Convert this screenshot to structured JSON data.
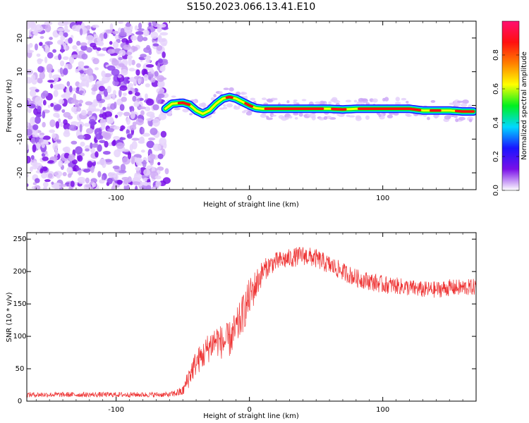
{
  "title": "S150.2023.066.13.41.E10",
  "chart_data": [
    {
      "type": "heatmap",
      "xlabel": "Height of straight line (km)",
      "ylabel": "Frequency (Hz)",
      "xlim": [
        -167,
        170
      ],
      "ylim": [
        -25,
        25
      ],
      "xticks": [
        -100,
        0,
        100
      ],
      "yticks": [
        -20,
        -10,
        0,
        10,
        20
      ],
      "noise_region_x": [
        -167,
        -63
      ],
      "ridge": {
        "x": [
          -63,
          -58,
          -50,
          -45,
          -40,
          -35,
          -30,
          -25,
          -20,
          -15,
          -10,
          -5,
          0,
          5,
          10,
          20,
          40,
          60,
          70,
          80,
          100,
          120,
          130,
          140,
          150,
          160,
          168
        ],
        "freq": [
          -1,
          0.5,
          0.8,
          0.2,
          -1.5,
          -2.5,
          -1.5,
          0.5,
          2,
          2.5,
          2,
          1,
          0,
          -0.8,
          -1,
          -1,
          -1,
          -1,
          -1.2,
          -1,
          -1,
          -1,
          -1.5,
          -1.5,
          -1.5,
          -1.8,
          -1.8
        ],
        "strong_spans": [
          [
            -53,
            -45
          ],
          [
            -17,
            -13
          ],
          [
            -3,
            2
          ],
          [
            12,
            55
          ],
          [
            62,
            72
          ],
          [
            82,
            128
          ],
          [
            136,
            143
          ],
          [
            155,
            168
          ]
        ]
      },
      "colorbar": {
        "label": "Normalized spectral amplitude",
        "range": [
          0,
          1
        ],
        "ticks": [
          0.0,
          0.2,
          0.4,
          0.6,
          0.8
        ],
        "tick_labels": [
          "0.0",
          "0.2",
          "0.4",
          "0.6",
          "0.8"
        ],
        "colormap": [
          "#ffffff",
          "#7a10e8",
          "#1a14ff",
          "#00d8ff",
          "#00f020",
          "#ffff00",
          "#ff8000",
          "#ff1010",
          "#ff1070"
        ]
      }
    },
    {
      "type": "line",
      "xlabel": "Height of straight line (km)",
      "ylabel": "SNR (10 * v/v)",
      "xlim": [
        -167,
        170
      ],
      "ylim": [
        0,
        260
      ],
      "xticks": [
        -100,
        0,
        100
      ],
      "yticks": [
        0,
        50,
        100,
        150,
        200,
        250
      ],
      "series": [
        {
          "color": "#ee3333",
          "envelope": {
            "x": [
              -167,
              -60,
              -50,
              -45,
              -40,
              -35,
              -30,
              -25,
              -20,
              -15,
              -10,
              -5,
              0,
              5,
              10,
              15,
              20,
              30,
              40,
              50,
              60,
              70,
              80,
              90,
              100,
              110,
              120,
              130,
              140,
              150,
              160,
              170
            ],
            "mean": [
              10,
              10,
              15,
              40,
              60,
              70,
              85,
              95,
              90,
              95,
              110,
              135,
              160,
              180,
              200,
              210,
              215,
              220,
              225,
              220,
              210,
              200,
              190,
              185,
              180,
              178,
              175,
              172,
              172,
              175,
              175,
              176
            ],
            "noise": [
              4,
              4,
              8,
              18,
              20,
              22,
              24,
              26,
              26,
              28,
              30,
              30,
              30,
              25,
              18,
              15,
              15,
              15,
              15,
              15,
              15,
              14,
              14,
              14,
              14,
              13,
              13,
              13,
              13,
              13,
              13,
              13
            ]
          }
        }
      ]
    }
  ]
}
